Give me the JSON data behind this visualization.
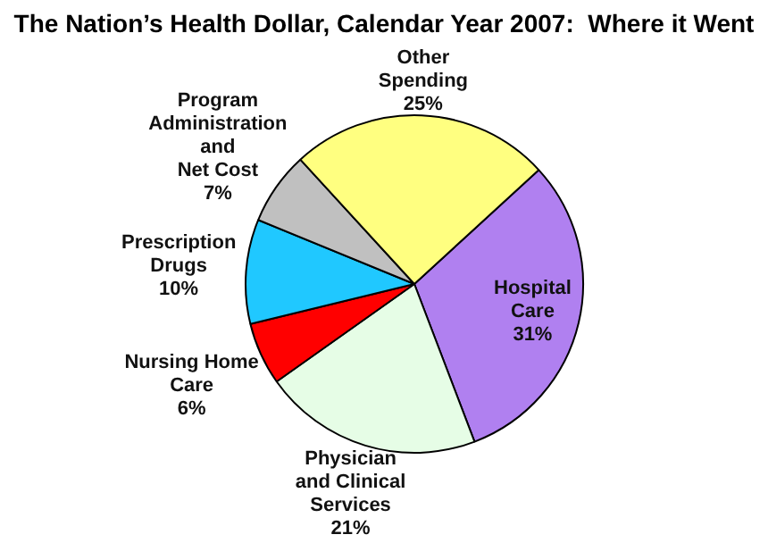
{
  "chart_data": {
    "type": "pie",
    "title": "The Nation’s Health Dollar, Calendar Year 2007:  Where it Went",
    "categories": [
      "Hospital\nCare",
      "Physician\nand Clinical\nServices",
      "Nursing Home\nCare",
      "Prescription\nDrugs",
      "Program\nAdministration\nand\nNet Cost",
      "Other\nSpending"
    ],
    "values": [
      31,
      21,
      6,
      10,
      7,
      25
    ],
    "value_labels": [
      "31%",
      "21%",
      "6%",
      "10%",
      "7%",
      "25%"
    ],
    "colors": [
      "#b080f0",
      "#e6fde6",
      "#ff0000",
      "#20c8ff",
      "#c0c0c0",
      "#ffff80"
    ],
    "legend": false
  }
}
